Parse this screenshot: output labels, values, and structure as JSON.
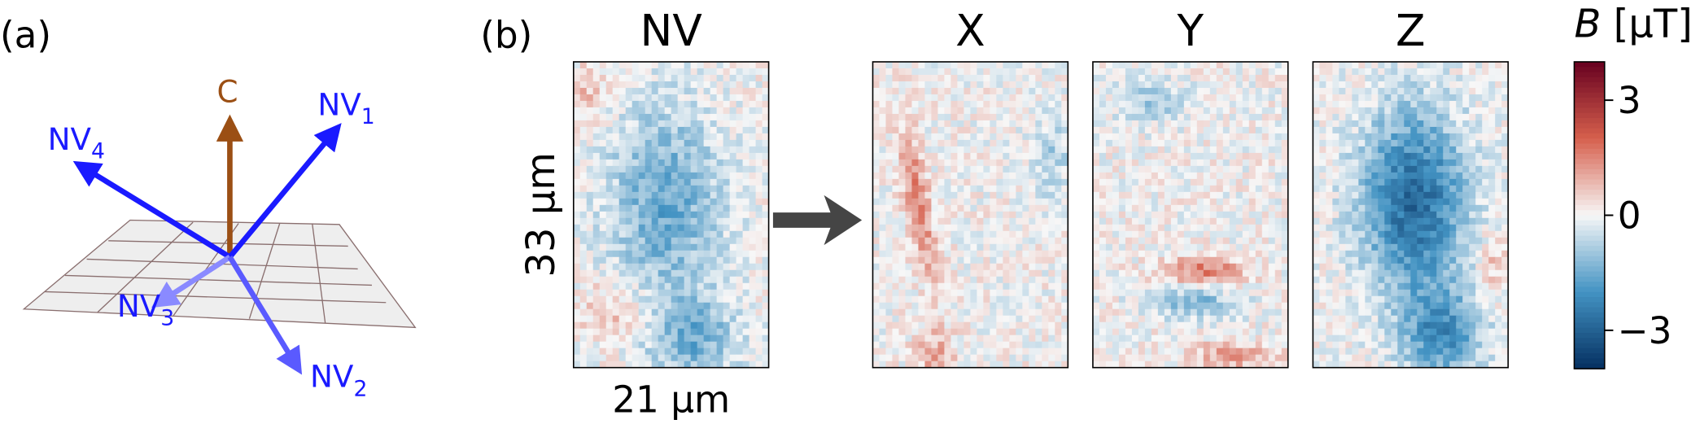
{
  "panel_a": {
    "label": "(a)",
    "vectors": [
      {
        "text": "C"
      },
      {
        "text": "NV",
        "sub": "1"
      },
      {
        "text": "NV",
        "sub": "2"
      },
      {
        "text": "NV",
        "sub": "3"
      },
      {
        "text": "NV",
        "sub": "4"
      }
    ]
  },
  "panel_b": {
    "label": "(b)",
    "maps": [
      "NV",
      "X",
      "Y",
      "Z"
    ],
    "height_label": "33 µm",
    "width_label": "21 µm",
    "colorbar": {
      "title_symbol": "B",
      "title_unit": " [µT]",
      "lim": [
        -4,
        4
      ],
      "ticks": [
        {
          "value": 3,
          "label": "3"
        },
        {
          "value": 0,
          "label": "0"
        },
        {
          "value": -3,
          "label": "−3"
        }
      ]
    }
  }
}
